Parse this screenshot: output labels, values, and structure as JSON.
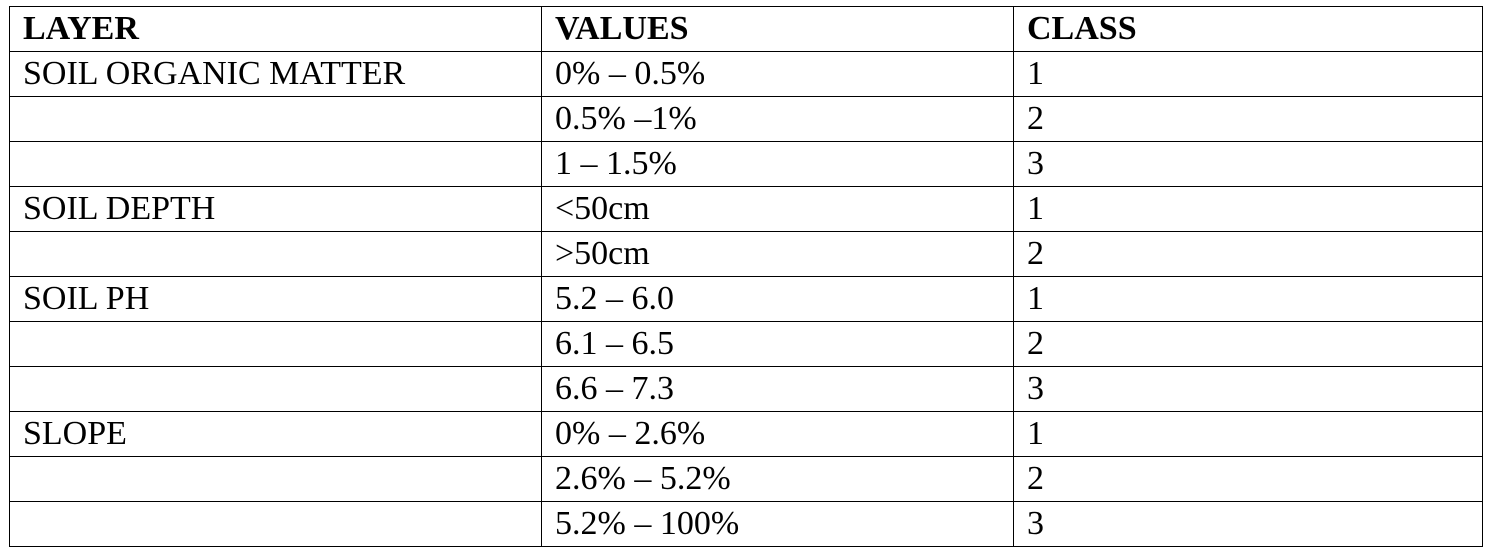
{
  "table": {
    "header": [
      "LAYER",
      "VALUES",
      "CLASS"
    ],
    "groups": [
      {
        "layer": "SOIL ORGANIC MATTER",
        "entries": [
          {
            "value": "0% – 0.5%",
            "class": 1
          },
          {
            "value": "0.5% –1%",
            "class": 2
          },
          {
            "value": "1 – 1.5%",
            "class": 3
          }
        ]
      },
      {
        "layer": "SOIL DEPTH",
        "entries": [
          {
            "value": "<50cm",
            "class": 1
          },
          {
            "value": ">50cm",
            "class": 2
          }
        ]
      },
      {
        "layer": "SOIL PH",
        "entries": [
          {
            "value": "5.2 – 6.0",
            "class": 1
          },
          {
            "value": "6.1 – 6.5",
            "class": 2
          },
          {
            "value": "6.6 – 7.3",
            "class": 3
          }
        ]
      },
      {
        "layer": "SLOPE",
        "entries": [
          {
            "value": "0% – 2.6%",
            "class": 1
          },
          {
            "value": "2.6% – 5.2%",
            "class": 2
          },
          {
            "value": "5.2% – 100%",
            "class": 3
          }
        ]
      }
    ]
  }
}
